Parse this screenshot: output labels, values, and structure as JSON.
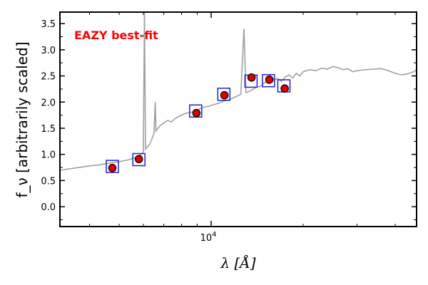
{
  "chart_data": {
    "type": "scatter",
    "title": "",
    "annotation": "EAZY best-fit",
    "xlabel": "λ [Å]",
    "ylabel": "f_ν [arbitrarily scaled]",
    "x_scale": "log",
    "xlim": [
      3200,
      47000
    ],
    "ylim": [
      -0.38,
      3.72
    ],
    "yticks": [
      0.0,
      0.5,
      1.0,
      1.5,
      2.0,
      2.5,
      3.0,
      3.5
    ],
    "ytick_labels": [
      "0.0",
      "0.5",
      "1.0",
      "1.5",
      "2.0",
      "2.5",
      "3.0",
      "3.5"
    ],
    "xtick_labels": [
      {
        "value": 10000,
        "base": "10",
        "exp": "4"
      }
    ],
    "grid": false,
    "colors": {
      "spectrum": "#a0a0a0",
      "observed_fill": "#e00000",
      "observed_edge": "#000000",
      "model_box": "#2222cc",
      "annotation": "#ff0000"
    },
    "series": [
      {
        "kind": "line",
        "x": [
          3200,
          3400,
          3600,
          3800,
          4000,
          4300,
          4600,
          5000,
          5400,
          5700,
          5900,
          6000,
          6050,
          6100,
          6300,
          6500,
          6560,
          6600,
          6800,
          7000,
          7200,
          7400,
          7600,
          7800,
          8000,
          8200,
          8500,
          8800,
          9000,
          9400,
          9800,
          10200,
          10600,
          11000,
          11500,
          12000,
          12500,
          12800,
          13000,
          13500,
          14000,
          14500,
          15000,
          15500,
          16000,
          16500,
          17000,
          17500,
          18000,
          18500,
          19000,
          19500,
          20000,
          21000,
          22000,
          23000,
          24000,
          25000,
          26000,
          27000,
          28000,
          29000,
          30000,
          32000,
          34000,
          36000,
          38000,
          40000,
          42000,
          44000,
          46000,
          47000
        ],
        "y": [
          0.69,
          0.72,
          0.74,
          0.76,
          0.78,
          0.8,
          0.83,
          0.86,
          0.9,
          0.95,
          1.0,
          1.05,
          3.75,
          1.1,
          1.2,
          1.4,
          2.0,
          1.45,
          1.55,
          1.6,
          1.65,
          1.62,
          1.68,
          1.72,
          1.75,
          1.78,
          1.8,
          1.82,
          1.85,
          1.9,
          1.92,
          1.95,
          1.98,
          2.02,
          2.05,
          2.1,
          2.15,
          3.4,
          2.18,
          2.22,
          2.28,
          2.3,
          2.38,
          2.35,
          2.42,
          2.45,
          2.4,
          2.48,
          2.52,
          2.46,
          2.55,
          2.5,
          2.58,
          2.62,
          2.6,
          2.65,
          2.63,
          2.68,
          2.66,
          2.62,
          2.64,
          2.58,
          2.6,
          2.62,
          2.63,
          2.64,
          2.6,
          2.55,
          2.52,
          2.54,
          2.58,
          2.62
        ]
      },
      {
        "kind": "model_boxes",
        "x": [
          4750,
          5800,
          8900,
          11000,
          13500,
          15400,
          17300
        ],
        "y": [
          0.77,
          0.9,
          1.83,
          2.15,
          2.4,
          2.41,
          2.31
        ]
      },
      {
        "kind": "observed_points",
        "x": [
          4750,
          5800,
          8950,
          11050,
          13550,
          15500,
          17400
        ],
        "y": [
          0.74,
          0.91,
          1.79,
          2.13,
          2.47,
          2.43,
          2.26
        ]
      }
    ]
  }
}
